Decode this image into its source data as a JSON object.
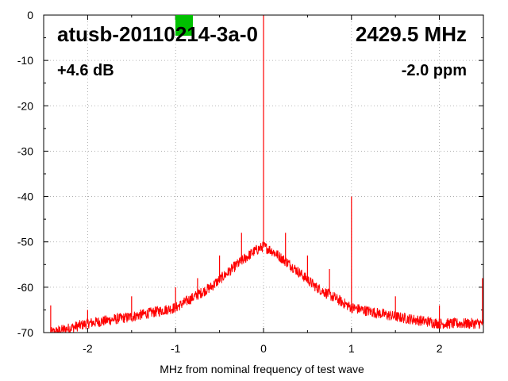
{
  "chart_data": {
    "type": "line",
    "title": "",
    "xlabel": "MHz from nominal frequency of test wave",
    "ylabel": "",
    "xlim": [
      -2.5,
      2.5
    ],
    "ylim": [
      -70,
      0
    ],
    "x_ticks": [
      -2,
      -1,
      0,
      1,
      2
    ],
    "x_tick_labels": [
      "-2",
      "-1",
      "0",
      "1",
      "2"
    ],
    "y_ticks": [
      0,
      -10,
      -20,
      -30,
      -40,
      -50,
      -60,
      -70
    ],
    "y_tick_labels": [
      "0",
      "-10",
      "-20",
      "-30",
      "-40",
      "-50",
      "-60",
      "-70"
    ],
    "grid": true,
    "series": [
      {
        "color": "#ff0000",
        "description_points": {
          "noise_floor_x": [
            -2.4,
            -2.0,
            -1.5,
            -1.0,
            -0.6,
            -0.3,
            -0.1,
            0.0,
            0.1,
            0.3,
            0.6,
            1.0,
            1.5,
            2.0,
            2.5
          ],
          "noise_floor_y": [
            -70,
            -68,
            -66.5,
            -64.5,
            -60,
            -55,
            -52,
            -51,
            -52,
            -55,
            -60,
            -64.5,
            -66.5,
            -68,
            -68
          ]
        },
        "spikes": [
          {
            "x": 0.0,
            "y": 0
          },
          {
            "x": -0.25,
            "y": -48
          },
          {
            "x": 0.25,
            "y": -48
          },
          {
            "x": -1.0,
            "y": -60
          },
          {
            "x": 1.0,
            "y": -40
          },
          {
            "x": -1.5,
            "y": -62
          },
          {
            "x": 1.5,
            "y": -62
          },
          {
            "x": -2.0,
            "y": -65
          },
          {
            "x": 2.0,
            "y": -64
          },
          {
            "x": -2.42,
            "y": -64
          },
          {
            "x": 2.49,
            "y": -58
          },
          {
            "x": -0.75,
            "y": -58
          },
          {
            "x": 0.5,
            "y": -53
          },
          {
            "x": 0.75,
            "y": -56
          },
          {
            "x": -0.5,
            "y": -53
          }
        ]
      }
    ]
  },
  "overlay": {
    "device_id": "atusb-20110214-3a-0",
    "frequency": "2429.5 MHz",
    "gain": "+4.6 dB",
    "offset": "-2.0 ppm",
    "indicator_color": "#00c000"
  }
}
